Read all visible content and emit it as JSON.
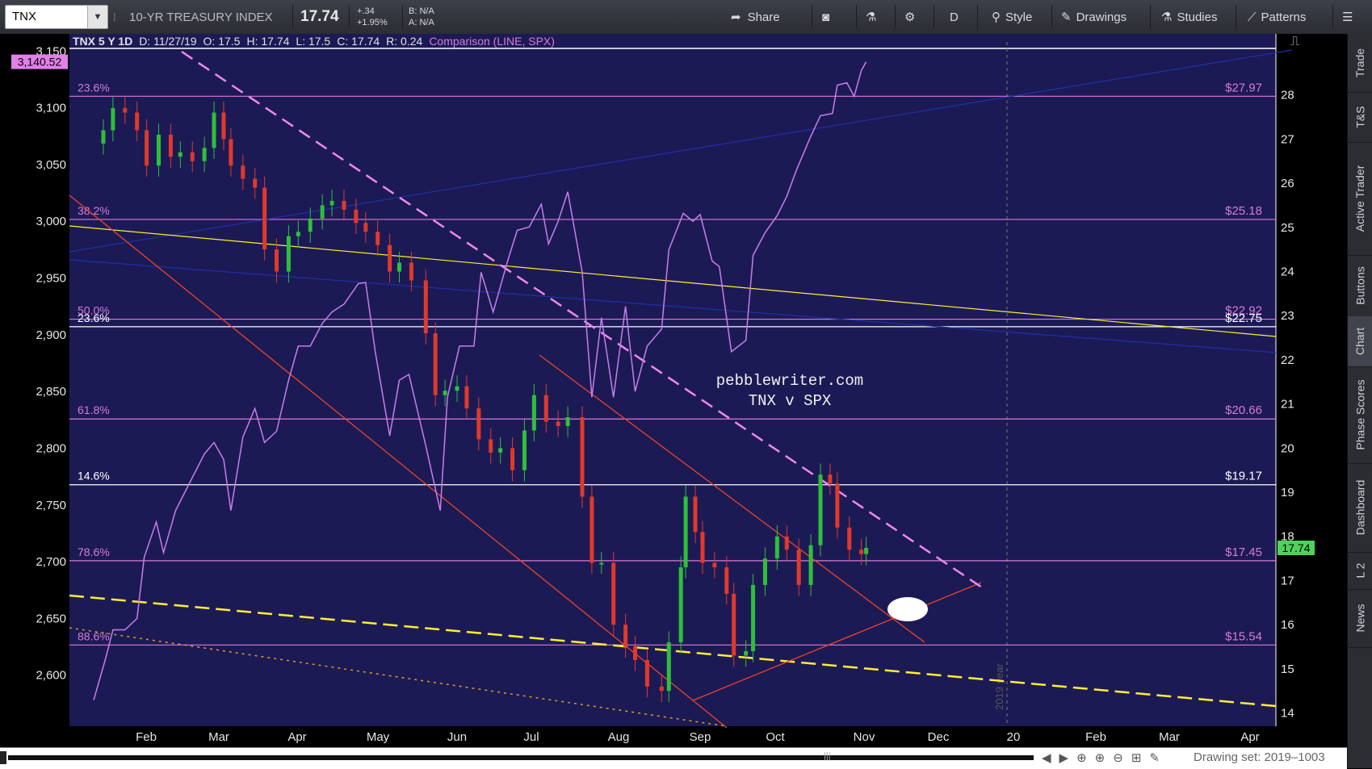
{
  "toolbar": {
    "symbol": "TNX",
    "description": "10-YR TREASURY INDEX",
    "last": "17.74",
    "change_abs": "+.34",
    "change_pct": "+1.95%",
    "bid": "B: N/A",
    "ask": "A: N/A",
    "share": "Share",
    "period": "D",
    "style": "Style",
    "drawings": "Drawings",
    "studies": "Studies",
    "patterns": "Patterns"
  },
  "sidebar": {
    "tabs": [
      "Trade",
      "T&S",
      "Active Trader",
      "Buttons",
      "Chart",
      "Phase Scores",
      "Dashboard",
      "L 2",
      "News"
    ],
    "active": "Chart"
  },
  "footer": {
    "drawing_set": "Drawing set: 2019–1003"
  },
  "chart_data": {
    "type": "candlestick",
    "header": {
      "title": "TNX 5 Y 1D",
      "date": "D: 11/27/19",
      "open": "O: 17.5",
      "high": "H: 17.74",
      "low": "L: 17.5",
      "close": "C: 17.74",
      "range": "R: 0.24",
      "comparison": "Comparison (LINE, SPX)"
    },
    "watermark": "pebblewriter.com\nTNX v SPX",
    "year_marker": "2019 year",
    "left_axis": {
      "ticks": [
        "3,150",
        "3,100",
        "3,050",
        "3,000",
        "2,950",
        "2,900",
        "2,850",
        "2,800",
        "2,750",
        "2,700",
        "2,650",
        "2,600"
      ],
      "ylim": [
        2555,
        3158
      ],
      "badge": "3,140.52"
    },
    "right_axis": {
      "ticks": [
        "28",
        "27",
        "26",
        "25",
        "24",
        "23",
        "22",
        "21",
        "20",
        "19",
        "18",
        "17",
        "16",
        "15",
        "14"
      ],
      "ylim": [
        13.7,
        29.2
      ],
      "badge": "17.74"
    },
    "x_axis": {
      "labels": [
        "Feb",
        "Mar",
        "Apr",
        "May",
        "Jun",
        "Jul",
        "Aug",
        "Sep",
        "Oct",
        "Nov",
        "Dec",
        "20",
        "Feb",
        "Mar",
        "Apr"
      ]
    },
    "fib_levels": [
      {
        "left": "23.6%",
        "right": "$27.97",
        "value": 27.97
      },
      {
        "left": "38.2%",
        "right": "$25.18",
        "value": 25.18
      },
      {
        "left": "50.0%",
        "right": "$22.92",
        "value": 22.92
      },
      {
        "left": "23.6%",
        "right": "$22.75",
        "value": 22.75
      },
      {
        "left": "61.8%",
        "right": "$20.66",
        "value": 20.66
      },
      {
        "left": "14.6%",
        "right": "$19.17",
        "value": 19.17
      },
      {
        "left": "78.6%",
        "right": "$17.45",
        "value": 17.45
      },
      {
        "left": "88.6%",
        "right": "$15.54",
        "value": 15.54
      }
    ],
    "tnx_series": {
      "name": "TNX",
      "points": [
        [
          "Jan 14",
          27.2
        ],
        [
          "Jan 18",
          27.7
        ],
        [
          "Jan 23",
          27.6
        ],
        [
          "Jan 28",
          27.2
        ],
        [
          "Feb 1",
          26.4
        ],
        [
          "Feb 6",
          27.1
        ],
        [
          "Feb 11",
          26.6
        ],
        [
          "Feb 15",
          26.7
        ],
        [
          "Feb 20",
          26.5
        ],
        [
          "Feb 25",
          26.8
        ],
        [
          "Mar 1",
          27.6
        ],
        [
          "Mar 5",
          27.0
        ],
        [
          "Mar 8",
          26.4
        ],
        [
          "Mar 13",
          26.1
        ],
        [
          "Mar 18",
          25.9
        ],
        [
          "Mar 22",
          24.5
        ],
        [
          "Mar 27",
          24.0
        ],
        [
          "Apr 1",
          24.8
        ],
        [
          "Apr 5",
          24.9
        ],
        [
          "Apr 10",
          25.2
        ],
        [
          "Apr 15",
          25.5
        ],
        [
          "Apr 19",
          25.6
        ],
        [
          "Apr 24",
          25.4
        ],
        [
          "Apr 29",
          25.1
        ],
        [
          "May 3",
          24.9
        ],
        [
          "May 8",
          24.6
        ],
        [
          "May 13",
          24.0
        ],
        [
          "May 17",
          24.2
        ],
        [
          "May 22",
          23.8
        ],
        [
          "May 28",
          22.6
        ],
        [
          "Jun 1",
          21.2
        ],
        [
          "Jun 5",
          21.3
        ],
        [
          "Jun 10",
          21.4
        ],
        [
          "Jun 14",
          20.9
        ],
        [
          "Jun 19",
          20.2
        ],
        [
          "Jun 24",
          19.9
        ],
        [
          "Jun 28",
          20.0
        ],
        [
          "Jul 3",
          19.5
        ],
        [
          "Jul 8",
          20.4
        ],
        [
          "Jul 12",
          21.2
        ],
        [
          "Jul 17",
          20.6
        ],
        [
          "Jul 22",
          20.5
        ],
        [
          "Jul 26",
          20.7
        ],
        [
          "Aug 1",
          18.9
        ],
        [
          "Aug 5",
          17.4
        ],
        [
          "Aug 9",
          17.4
        ],
        [
          "Aug 14",
          16.0
        ],
        [
          "Aug 19",
          15.5
        ],
        [
          "Aug 23",
          15.2
        ],
        [
          "Aug 28",
          14.6
        ],
        [
          "Sep 3",
          14.5
        ],
        [
          "Sep 6",
          15.6
        ],
        [
          "Sep 11",
          17.3
        ],
        [
          "Sep 13",
          18.9
        ],
        [
          "Sep 17",
          18.1
        ],
        [
          "Sep 20",
          17.4
        ],
        [
          "Sep 25",
          17.3
        ],
        [
          "Sep 30",
          16.7
        ],
        [
          "Oct 3",
          15.3
        ],
        [
          "Oct 8",
          15.4
        ],
        [
          "Oct 11",
          16.9
        ],
        [
          "Oct 16",
          17.5
        ],
        [
          "Oct 21",
          18.0
        ],
        [
          "Oct 25",
          17.7
        ],
        [
          "Oct 30",
          16.9
        ],
        [
          "Nov 4",
          17.8
        ],
        [
          "Nov 8",
          19.4
        ],
        [
          "Nov 12",
          19.2
        ],
        [
          "Nov 15",
          18.2
        ],
        [
          "Nov 20",
          17.7
        ],
        [
          "Nov 25",
          17.6
        ],
        [
          "Nov 27",
          17.74
        ]
      ]
    },
    "spx_series": {
      "name": "SPX",
      "points": [
        [
          "Jan 10",
          2578
        ],
        [
          "Jan 15",
          2615
        ],
        [
          "Jan 18",
          2640
        ],
        [
          "Jan 23",
          2640
        ],
        [
          "Jan 28",
          2650
        ],
        [
          "Jan 31",
          2704
        ],
        [
          "Feb 5",
          2735
        ],
        [
          "Feb 8",
          2708
        ],
        [
          "Feb 13",
          2745
        ],
        [
          "Feb 19",
          2770
        ],
        [
          "Feb 25",
          2795
        ],
        [
          "Mar 1",
          2805
        ],
        [
          "Mar 5",
          2790
        ],
        [
          "Mar 8",
          2745
        ],
        [
          "Mar 13",
          2810
        ],
        [
          "Mar 18",
          2835
        ],
        [
          "Mar 22",
          2805
        ],
        [
          "Mar 27",
          2815
        ],
        [
          "Apr 1",
          2860
        ],
        [
          "Apr 5",
          2890
        ],
        [
          "Apr 10",
          2890
        ],
        [
          "Apr 15",
          2910
        ],
        [
          "Apr 19",
          2920
        ],
        [
          "Apr 24",
          2927
        ],
        [
          "Apr 30",
          2945
        ],
        [
          "May 3",
          2946
        ],
        [
          "May 7",
          2885
        ],
        [
          "May 13",
          2811
        ],
        [
          "May 17",
          2860
        ],
        [
          "May 21",
          2865
        ],
        [
          "May 28",
          2802
        ],
        [
          "Jun 3",
          2745
        ],
        [
          "Jun 6",
          2845
        ],
        [
          "Jun 11",
          2890
        ],
        [
          "Jun 17",
          2890
        ],
        [
          "Jun 20",
          2955
        ],
        [
          "Jun 25",
          2920
        ],
        [
          "Jul 1",
          2965
        ],
        [
          "Jul 5",
          2992
        ],
        [
          "Jul 10",
          2995
        ],
        [
          "Jul 15",
          3015
        ],
        [
          "Jul 18",
          2980
        ],
        [
          "Jul 22",
          3000
        ],
        [
          "Jul 26",
          3026
        ],
        [
          "Aug 1",
          2955
        ],
        [
          "Aug 5",
          2845
        ],
        [
          "Aug 9",
          2915
        ],
        [
          "Aug 14",
          2845
        ],
        [
          "Aug 19",
          2925
        ],
        [
          "Aug 23",
          2850
        ],
        [
          "Aug 28",
          2890
        ],
        [
          "Sep 3",
          2905
        ],
        [
          "Sep 6",
          2975
        ],
        [
          "Sep 12",
          3007
        ],
        [
          "Sep 16",
          3000
        ],
        [
          "Sep 19",
          3006
        ],
        [
          "Sep 24",
          2965
        ],
        [
          "Sep 27",
          2960
        ],
        [
          "Oct 2",
          2885
        ],
        [
          "Oct 8",
          2895
        ],
        [
          "Oct 11",
          2970
        ],
        [
          "Oct 16",
          2990
        ],
        [
          "Oct 21",
          3005
        ],
        [
          "Oct 25",
          3022
        ],
        [
          "Oct 29",
          3045
        ],
        [
          "Nov 4",
          3075
        ],
        [
          "Nov 8",
          3093
        ],
        [
          "Nov 13",
          3095
        ],
        [
          "Nov 15",
          3120
        ],
        [
          "Nov 19",
          3122
        ],
        [
          "Nov 22",
          3110
        ],
        [
          "Nov 25",
          3133
        ],
        [
          "Nov 27",
          3140.52
        ]
      ]
    }
  },
  "colors": {
    "chart_bg": "#1c1a55",
    "up_candle": "#2fbf3a",
    "down_candle": "#e0392b",
    "spx_line": "#c77ee8",
    "fib_magenta": "#d87bd8",
    "fib_white": "#ffffff",
    "trend_yellow": "#ffee33",
    "trend_red": "#e8442c",
    "dashed_pink": "#ee88ee",
    "price_badge": "#4dd35a",
    "spx_badge": "#e27fe8"
  }
}
